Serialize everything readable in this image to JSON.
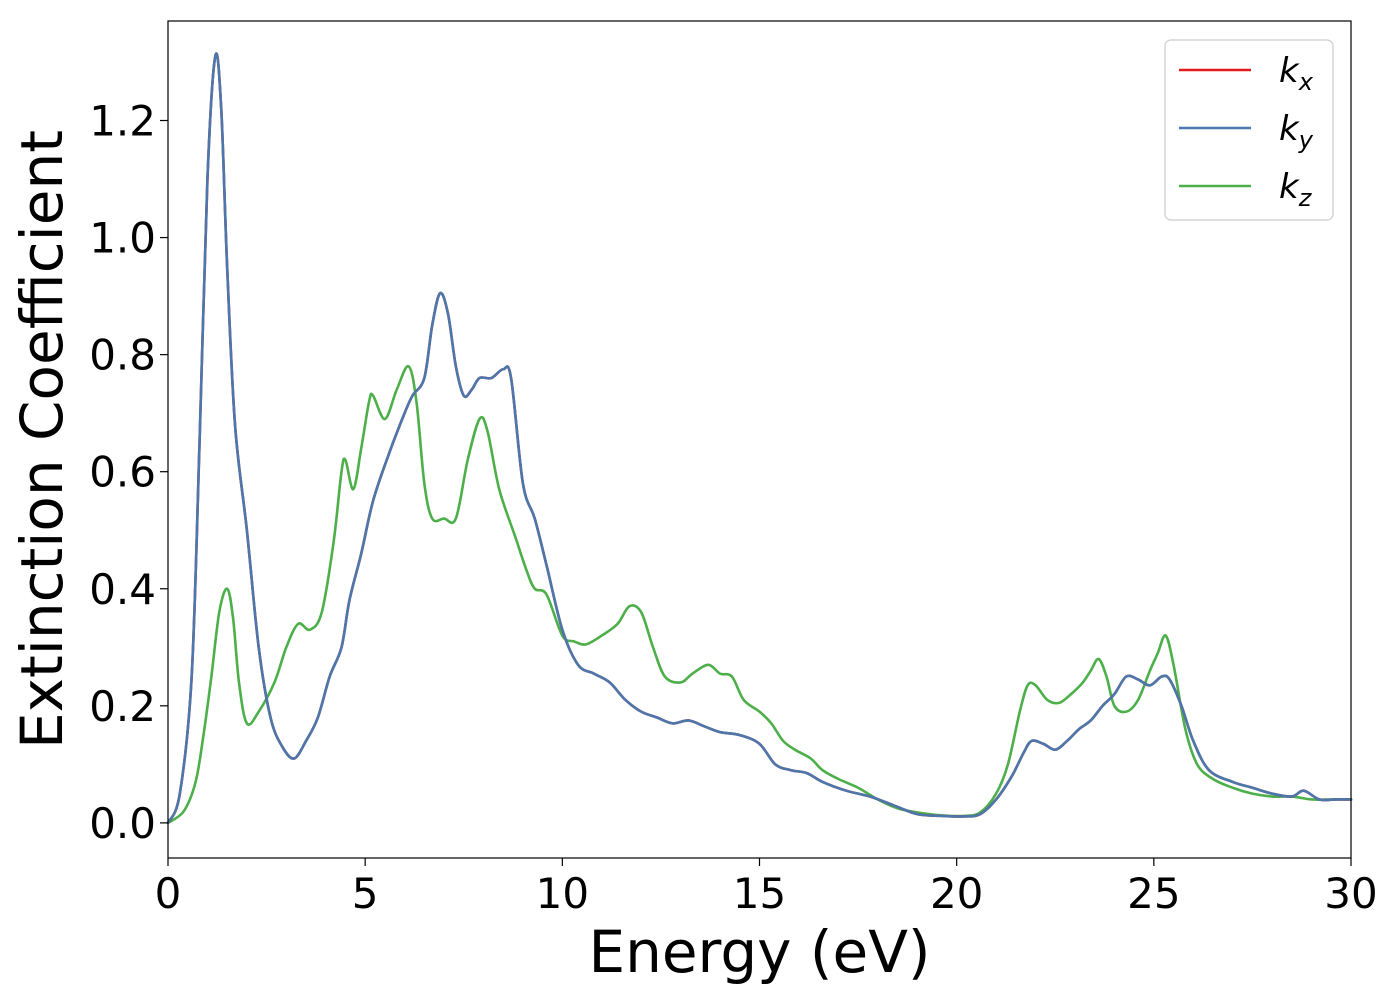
{
  "chart_data": {
    "type": "line",
    "title": "",
    "xlabel": "Energy (eV)",
    "ylabel": "Extinction Coefficient",
    "xlim": [
      0,
      30
    ],
    "ylim": [
      -0.06,
      1.37
    ],
    "xticks": [
      0,
      5,
      10,
      15,
      20,
      25,
      30
    ],
    "yticks": [
      0.0,
      0.2,
      0.4,
      0.6,
      0.8,
      1.0,
      1.2
    ],
    "ytick_format": 1,
    "grid": false,
    "legend_position": "top-right",
    "series": [
      {
        "name": "k_x",
        "label_main": "k",
        "label_sub": "x",
        "color": "#e41a1c",
        "points": [
          [
            0,
            0
          ],
          [
            0.3,
            0.05
          ],
          [
            0.6,
            0.25
          ],
          [
            0.8,
            0.65
          ],
          [
            1.0,
            1.1
          ],
          [
            1.2,
            1.31
          ],
          [
            1.35,
            1.22
          ],
          [
            1.5,
            0.95
          ],
          [
            1.7,
            0.68
          ],
          [
            2.0,
            0.5
          ],
          [
            2.3,
            0.3
          ],
          [
            2.6,
            0.18
          ],
          [
            2.9,
            0.13
          ],
          [
            3.2,
            0.11
          ],
          [
            3.5,
            0.14
          ],
          [
            3.8,
            0.18
          ],
          [
            4.1,
            0.25
          ],
          [
            4.4,
            0.3
          ],
          [
            4.6,
            0.38
          ],
          [
            4.9,
            0.46
          ],
          [
            5.2,
            0.55
          ],
          [
            5.6,
            0.63
          ],
          [
            6.0,
            0.7
          ],
          [
            6.2,
            0.73
          ],
          [
            6.5,
            0.76
          ],
          [
            6.7,
            0.85
          ],
          [
            6.9,
            0.905
          ],
          [
            7.1,
            0.87
          ],
          [
            7.3,
            0.78
          ],
          [
            7.5,
            0.73
          ],
          [
            7.7,
            0.74
          ],
          [
            7.9,
            0.76
          ],
          [
            8.2,
            0.76
          ],
          [
            8.5,
            0.775
          ],
          [
            8.7,
            0.76
          ],
          [
            9.0,
            0.58
          ],
          [
            9.3,
            0.52
          ],
          [
            9.6,
            0.44
          ],
          [
            10.0,
            0.33
          ],
          [
            10.4,
            0.27
          ],
          [
            10.8,
            0.255
          ],
          [
            11.2,
            0.24
          ],
          [
            11.6,
            0.21
          ],
          [
            12.0,
            0.19
          ],
          [
            12.4,
            0.18
          ],
          [
            12.8,
            0.17
          ],
          [
            13.2,
            0.175
          ],
          [
            13.6,
            0.165
          ],
          [
            14.0,
            0.155
          ],
          [
            14.5,
            0.15
          ],
          [
            15.0,
            0.135
          ],
          [
            15.4,
            0.1
          ],
          [
            15.8,
            0.09
          ],
          [
            16.2,
            0.085
          ],
          [
            16.6,
            0.07
          ],
          [
            17.2,
            0.055
          ],
          [
            17.8,
            0.045
          ],
          [
            18.4,
            0.03
          ],
          [
            19.0,
            0.015
          ],
          [
            19.6,
            0.012
          ],
          [
            20.2,
            0.011
          ],
          [
            20.6,
            0.015
          ],
          [
            21.0,
            0.04
          ],
          [
            21.4,
            0.08
          ],
          [
            21.7,
            0.12
          ],
          [
            21.9,
            0.14
          ],
          [
            22.2,
            0.135
          ],
          [
            22.5,
            0.125
          ],
          [
            22.8,
            0.14
          ],
          [
            23.1,
            0.16
          ],
          [
            23.4,
            0.175
          ],
          [
            23.7,
            0.2
          ],
          [
            24.0,
            0.22
          ],
          [
            24.3,
            0.25
          ],
          [
            24.6,
            0.245
          ],
          [
            24.9,
            0.235
          ],
          [
            25.2,
            0.25
          ],
          [
            25.4,
            0.245
          ],
          [
            25.7,
            0.2
          ],
          [
            26.0,
            0.14
          ],
          [
            26.4,
            0.09
          ],
          [
            27.0,
            0.07
          ],
          [
            27.5,
            0.06
          ],
          [
            28.0,
            0.05
          ],
          [
            28.5,
            0.045
          ],
          [
            28.8,
            0.055
          ],
          [
            29.2,
            0.04
          ],
          [
            29.6,
            0.04
          ],
          [
            30.0,
            0.04
          ]
        ]
      },
      {
        "name": "k_y",
        "label_main": "k",
        "label_sub": "y",
        "color": "#4a77ac",
        "points": [
          [
            0,
            0
          ],
          [
            0.3,
            0.05
          ],
          [
            0.6,
            0.25
          ],
          [
            0.8,
            0.65
          ],
          [
            1.0,
            1.1
          ],
          [
            1.2,
            1.31
          ],
          [
            1.35,
            1.22
          ],
          [
            1.5,
            0.95
          ],
          [
            1.7,
            0.68
          ],
          [
            2.0,
            0.5
          ],
          [
            2.3,
            0.3
          ],
          [
            2.6,
            0.18
          ],
          [
            2.9,
            0.13
          ],
          [
            3.2,
            0.11
          ],
          [
            3.5,
            0.14
          ],
          [
            3.8,
            0.18
          ],
          [
            4.1,
            0.25
          ],
          [
            4.4,
            0.3
          ],
          [
            4.6,
            0.38
          ],
          [
            4.9,
            0.46
          ],
          [
            5.2,
            0.55
          ],
          [
            5.6,
            0.63
          ],
          [
            6.0,
            0.7
          ],
          [
            6.2,
            0.73
          ],
          [
            6.5,
            0.76
          ],
          [
            6.7,
            0.85
          ],
          [
            6.9,
            0.905
          ],
          [
            7.1,
            0.87
          ],
          [
            7.3,
            0.78
          ],
          [
            7.5,
            0.73
          ],
          [
            7.7,
            0.74
          ],
          [
            7.9,
            0.76
          ],
          [
            8.2,
            0.76
          ],
          [
            8.5,
            0.775
          ],
          [
            8.7,
            0.76
          ],
          [
            9.0,
            0.58
          ],
          [
            9.3,
            0.52
          ],
          [
            9.6,
            0.44
          ],
          [
            10.0,
            0.33
          ],
          [
            10.4,
            0.27
          ],
          [
            10.8,
            0.255
          ],
          [
            11.2,
            0.24
          ],
          [
            11.6,
            0.21
          ],
          [
            12.0,
            0.19
          ],
          [
            12.4,
            0.18
          ],
          [
            12.8,
            0.17
          ],
          [
            13.2,
            0.175
          ],
          [
            13.6,
            0.165
          ],
          [
            14.0,
            0.155
          ],
          [
            14.5,
            0.15
          ],
          [
            15.0,
            0.135
          ],
          [
            15.4,
            0.1
          ],
          [
            15.8,
            0.09
          ],
          [
            16.2,
            0.085
          ],
          [
            16.6,
            0.07
          ],
          [
            17.2,
            0.055
          ],
          [
            17.8,
            0.045
          ],
          [
            18.4,
            0.03
          ],
          [
            19.0,
            0.015
          ],
          [
            19.6,
            0.012
          ],
          [
            20.2,
            0.011
          ],
          [
            20.6,
            0.015
          ],
          [
            21.0,
            0.04
          ],
          [
            21.4,
            0.08
          ],
          [
            21.7,
            0.12
          ],
          [
            21.9,
            0.14
          ],
          [
            22.2,
            0.135
          ],
          [
            22.5,
            0.125
          ],
          [
            22.8,
            0.14
          ],
          [
            23.1,
            0.16
          ],
          [
            23.4,
            0.175
          ],
          [
            23.7,
            0.2
          ],
          [
            24.0,
            0.22
          ],
          [
            24.3,
            0.25
          ],
          [
            24.6,
            0.245
          ],
          [
            24.9,
            0.235
          ],
          [
            25.2,
            0.25
          ],
          [
            25.4,
            0.245
          ],
          [
            25.7,
            0.2
          ],
          [
            26.0,
            0.14
          ],
          [
            26.4,
            0.09
          ],
          [
            27.0,
            0.07
          ],
          [
            27.5,
            0.06
          ],
          [
            28.0,
            0.05
          ],
          [
            28.5,
            0.045
          ],
          [
            28.8,
            0.055
          ],
          [
            29.2,
            0.04
          ],
          [
            29.6,
            0.04
          ],
          [
            30.0,
            0.04
          ]
        ]
      },
      {
        "name": "k_z",
        "label_main": "k",
        "label_sub": "z",
        "color": "#4daf4a",
        "points": [
          [
            0,
            0
          ],
          [
            0.4,
            0.02
          ],
          [
            0.7,
            0.07
          ],
          [
            0.9,
            0.15
          ],
          [
            1.1,
            0.25
          ],
          [
            1.3,
            0.36
          ],
          [
            1.5,
            0.4
          ],
          [
            1.65,
            0.35
          ],
          [
            1.8,
            0.24
          ],
          [
            2.0,
            0.17
          ],
          [
            2.3,
            0.19
          ],
          [
            2.7,
            0.24
          ],
          [
            3.0,
            0.3
          ],
          [
            3.3,
            0.34
          ],
          [
            3.6,
            0.33
          ],
          [
            3.9,
            0.36
          ],
          [
            4.2,
            0.48
          ],
          [
            4.4,
            0.6
          ],
          [
            4.5,
            0.62
          ],
          [
            4.7,
            0.57
          ],
          [
            4.9,
            0.64
          ],
          [
            5.1,
            0.72
          ],
          [
            5.2,
            0.73
          ],
          [
            5.5,
            0.69
          ],
          [
            5.8,
            0.74
          ],
          [
            6.1,
            0.78
          ],
          [
            6.3,
            0.72
          ],
          [
            6.5,
            0.58
          ],
          [
            6.7,
            0.52
          ],
          [
            7.0,
            0.52
          ],
          [
            7.3,
            0.52
          ],
          [
            7.6,
            0.62
          ],
          [
            7.9,
            0.69
          ],
          [
            8.1,
            0.67
          ],
          [
            8.4,
            0.57
          ],
          [
            8.8,
            0.49
          ],
          [
            9.1,
            0.43
          ],
          [
            9.3,
            0.4
          ],
          [
            9.6,
            0.39
          ],
          [
            10.0,
            0.32
          ],
          [
            10.3,
            0.31
          ],
          [
            10.6,
            0.305
          ],
          [
            11.0,
            0.32
          ],
          [
            11.4,
            0.34
          ],
          [
            11.7,
            0.37
          ],
          [
            12.0,
            0.36
          ],
          [
            12.3,
            0.3
          ],
          [
            12.6,
            0.25
          ],
          [
            13.0,
            0.24
          ],
          [
            13.3,
            0.255
          ],
          [
            13.7,
            0.27
          ],
          [
            14.0,
            0.255
          ],
          [
            14.3,
            0.25
          ],
          [
            14.6,
            0.21
          ],
          [
            15.0,
            0.19
          ],
          [
            15.3,
            0.17
          ],
          [
            15.6,
            0.14
          ],
          [
            15.9,
            0.125
          ],
          [
            16.3,
            0.11
          ],
          [
            16.6,
            0.09
          ],
          [
            17.0,
            0.075
          ],
          [
            17.5,
            0.06
          ],
          [
            18.0,
            0.04
          ],
          [
            18.5,
            0.025
          ],
          [
            19.0,
            0.018
          ],
          [
            19.6,
            0.013
          ],
          [
            20.2,
            0.012
          ],
          [
            20.6,
            0.018
          ],
          [
            21.0,
            0.05
          ],
          [
            21.3,
            0.1
          ],
          [
            21.6,
            0.19
          ],
          [
            21.8,
            0.235
          ],
          [
            22.0,
            0.235
          ],
          [
            22.3,
            0.21
          ],
          [
            22.6,
            0.205
          ],
          [
            22.9,
            0.22
          ],
          [
            23.2,
            0.24
          ],
          [
            23.4,
            0.26
          ],
          [
            23.6,
            0.28
          ],
          [
            23.8,
            0.25
          ],
          [
            24.0,
            0.2
          ],
          [
            24.3,
            0.19
          ],
          [
            24.6,
            0.21
          ],
          [
            24.9,
            0.26
          ],
          [
            25.1,
            0.29
          ],
          [
            25.3,
            0.32
          ],
          [
            25.5,
            0.27
          ],
          [
            25.8,
            0.16
          ],
          [
            26.1,
            0.1
          ],
          [
            26.5,
            0.075
          ],
          [
            27.0,
            0.06
          ],
          [
            27.5,
            0.05
          ],
          [
            28.0,
            0.045
          ],
          [
            28.5,
            0.045
          ],
          [
            29.0,
            0.04
          ],
          [
            29.5,
            0.04
          ],
          [
            30.0,
            0.04
          ]
        ]
      }
    ]
  }
}
